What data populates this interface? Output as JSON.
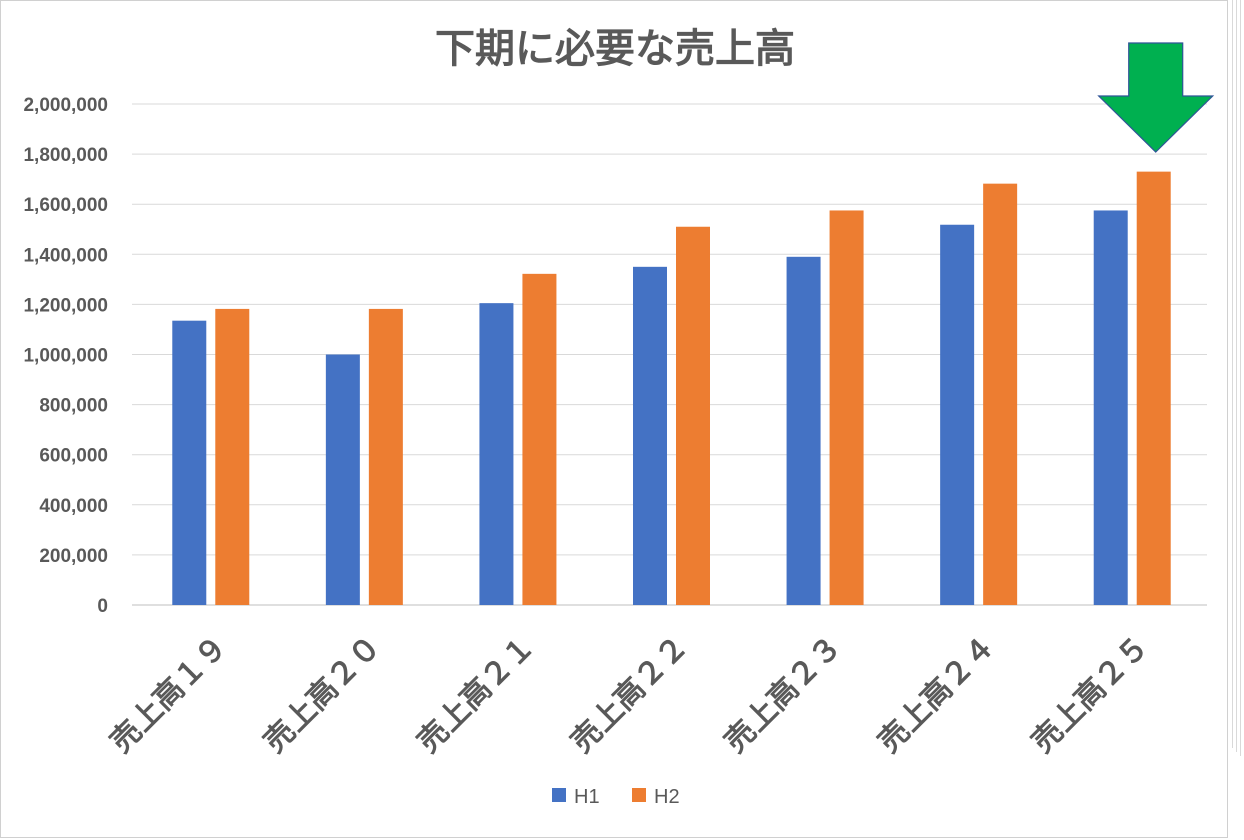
{
  "chart_data": {
    "type": "bar",
    "title": "下期に必要な売上高",
    "categories": [
      "売上高１９",
      "売上高２０",
      "売上高２１",
      "売上高２２",
      "売上高２３",
      "売上高２４",
      "売上高２５"
    ],
    "series": [
      {
        "name": "H1",
        "color": "#4472C4",
        "values": [
          1135000,
          1000000,
          1205000,
          1350000,
          1390000,
          1518000,
          1575000
        ]
      },
      {
        "name": "H2",
        "color": "#ED7D31",
        "values": [
          1182000,
          1182000,
          1322000,
          1510000,
          1575000,
          1682000,
          1730000
        ]
      }
    ],
    "ylim": [
      0,
      2000000
    ],
    "yticks": [
      "0",
      "200,000",
      "400,000",
      "600,000",
      "800,000",
      "1,000,000",
      "1,200,000",
      "1,400,000",
      "1,600,000",
      "1,800,000",
      "2,000,000"
    ],
    "grid": true,
    "legend_position": "bottom",
    "annotation": {
      "shape": "down-arrow",
      "color": "#00B050",
      "target_category": "売上高２５"
    }
  }
}
